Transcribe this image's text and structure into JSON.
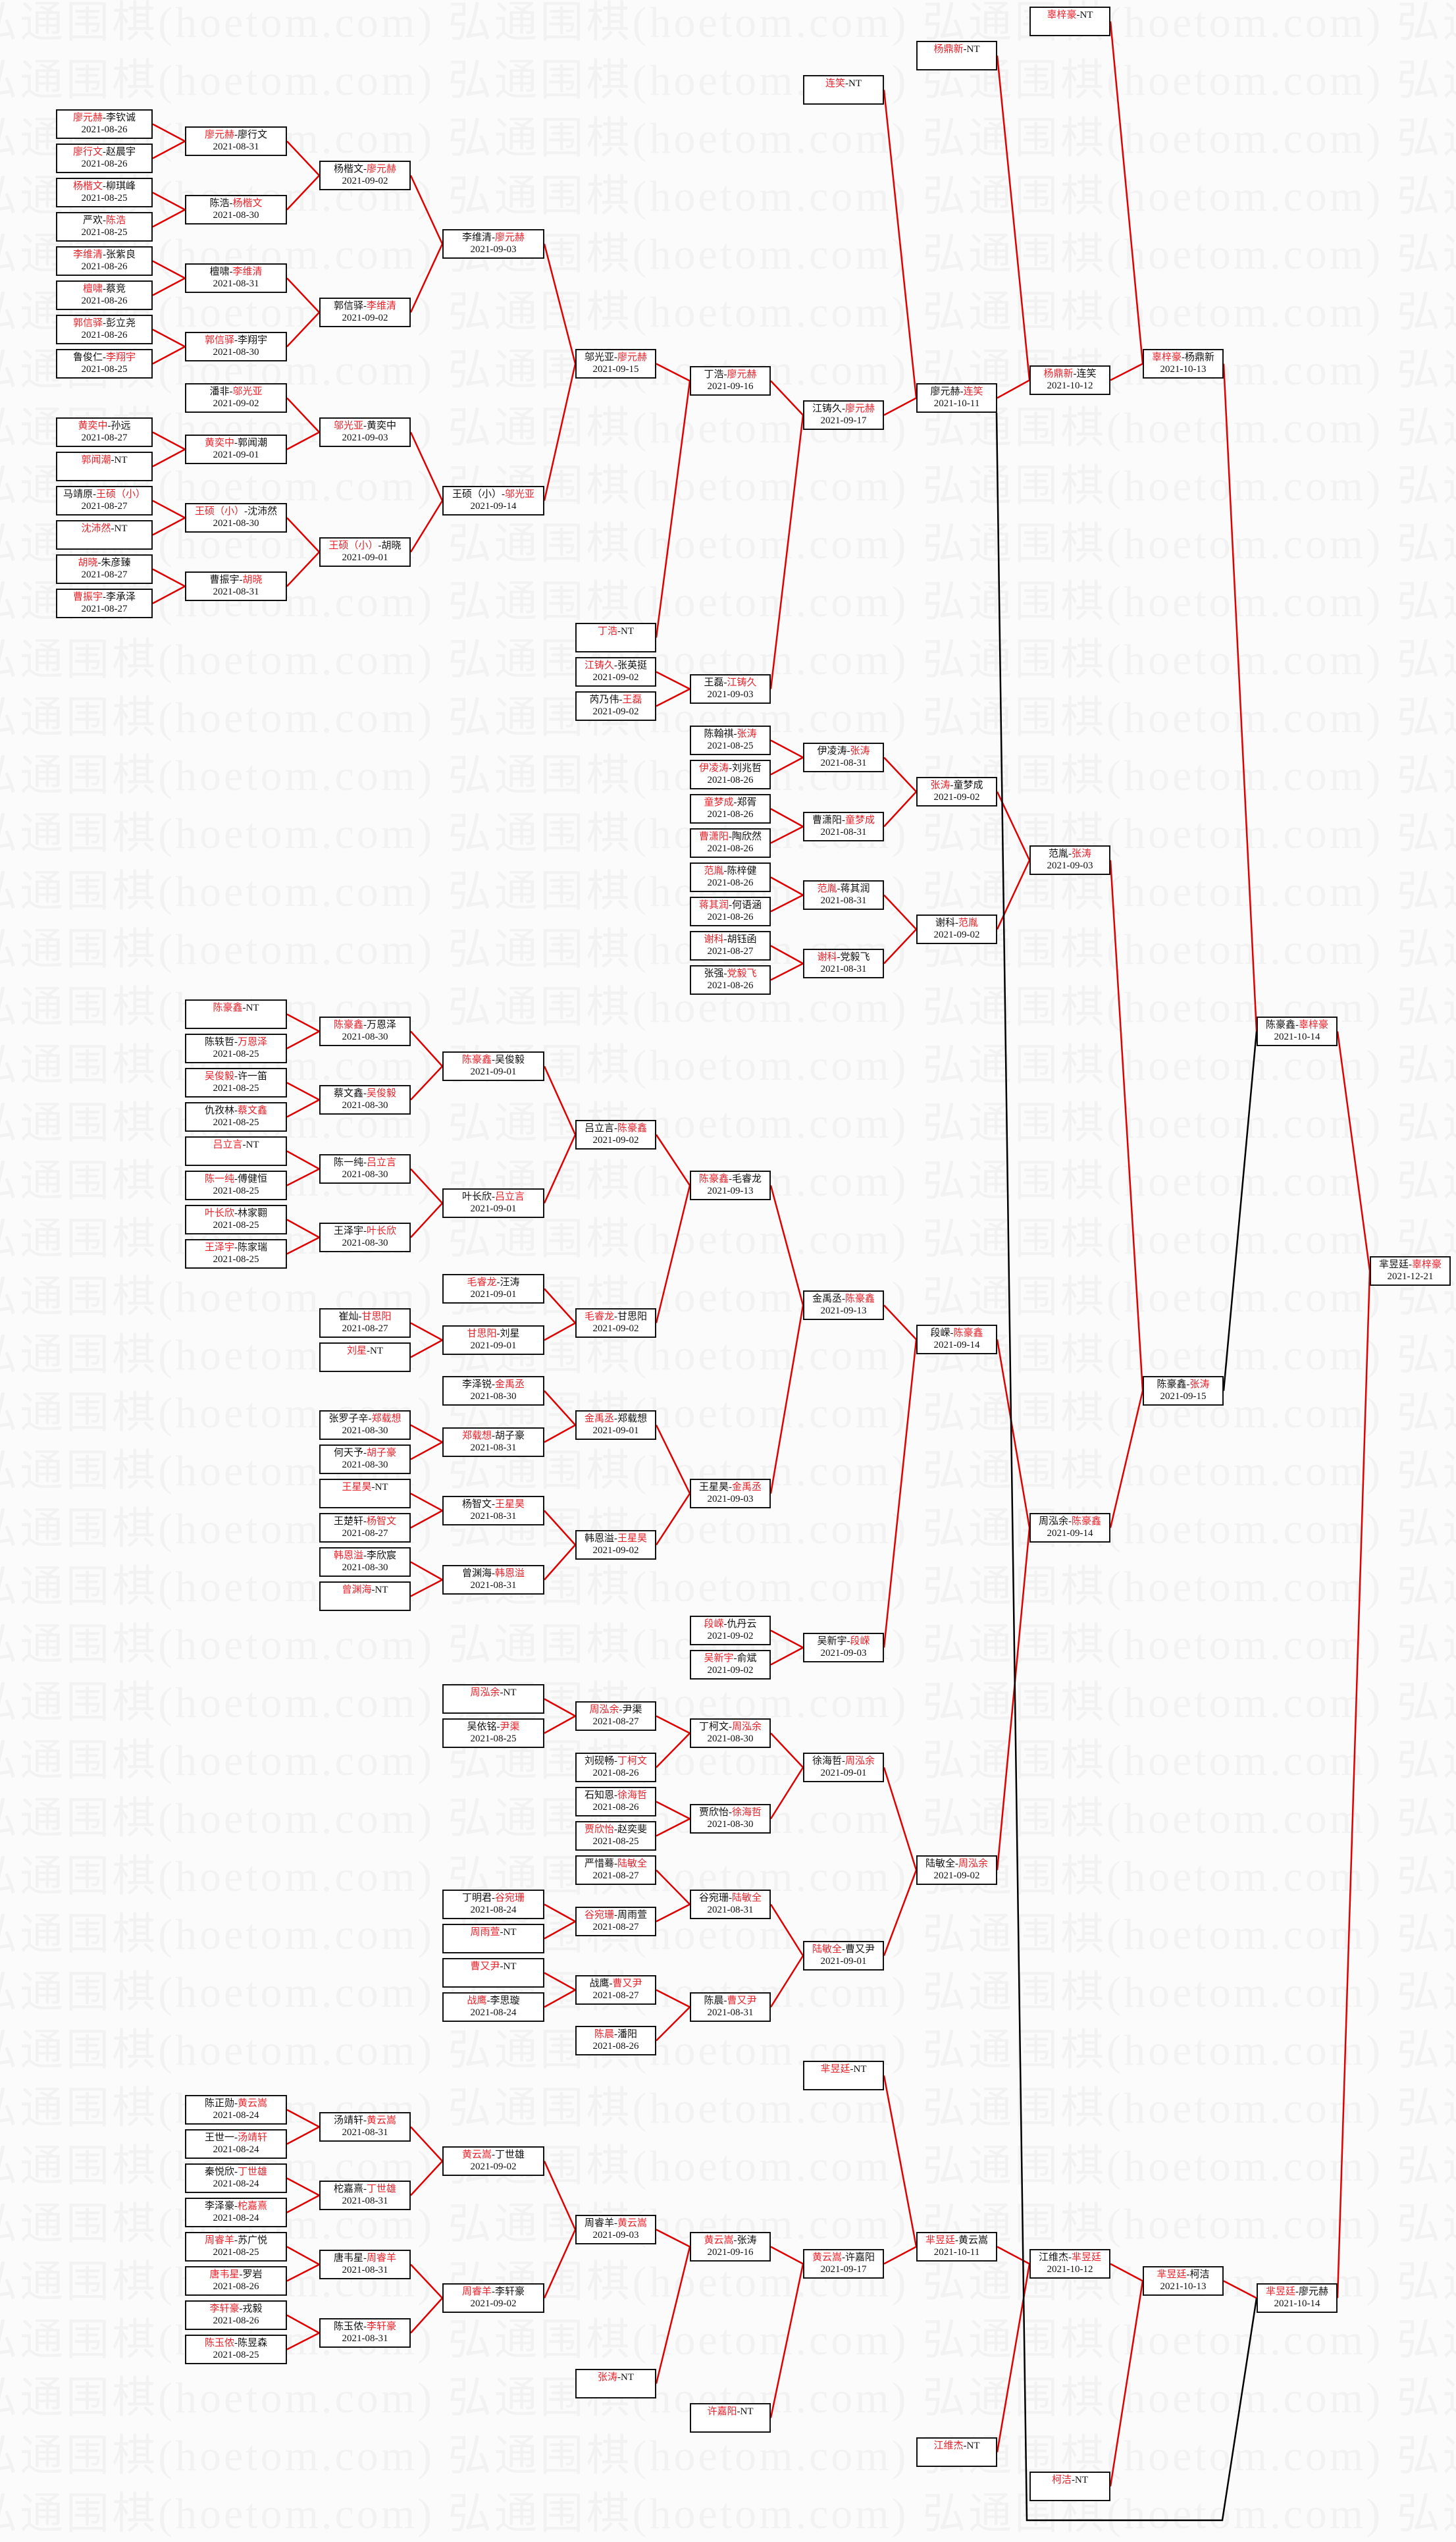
{
  "watermark": "弘通围棋(hoetom.com)",
  "colors": {
    "winner": "#e8222a",
    "winner_line": "#e00000",
    "loser_line": "#000000",
    "box_border": "#111111"
  },
  "bye_label": "NT",
  "matches": [
    {
      "a": "廖元赫",
      "b": "李钦诚",
      "date": "2021-08-26",
      "winner": "a"
    },
    {
      "a": "廖行文",
      "b": "赵晨宇",
      "date": "2021-08-26",
      "winner": "a"
    },
    {
      "a": "杨楷文",
      "b": "柳琪峰",
      "date": "2021-08-25",
      "winner": "a"
    },
    {
      "a": "严欢",
      "b": "陈浩",
      "date": "2021-08-25",
      "winner": "b"
    },
    {
      "a": "李维清",
      "b": "张紫良",
      "date": "2021-08-26",
      "winner": "a"
    },
    {
      "a": "檀啸",
      "b": "蔡竞",
      "date": "2021-08-26",
      "winner": "a"
    },
    {
      "a": "郭信驿",
      "b": "彭立尧",
      "date": "2021-08-26",
      "winner": "a"
    },
    {
      "a": "鲁俊仁",
      "b": "李翔宇",
      "date": "2021-08-25",
      "winner": "b"
    },
    {
      "a": "黄奕中",
      "b": "孙远",
      "date": "2021-08-27",
      "winner": "a"
    },
    {
      "a": "郭闻潮",
      "b": "NT",
      "date": "",
      "winner": "a"
    },
    {
      "a": "马靖原",
      "b": "王硕（小）",
      "date": "2021-08-27",
      "winner": "b"
    },
    {
      "a": "沈沛然",
      "b": "NT",
      "date": "",
      "winner": "a"
    },
    {
      "a": "胡晓",
      "b": "朱彦臻",
      "date": "2021-08-27",
      "winner": "a"
    },
    {
      "a": "曹振宇",
      "b": "李承泽",
      "date": "2021-08-27",
      "winner": "a"
    },
    {
      "a": "廖元赫",
      "b": "廖行文",
      "date": "2021-08-31",
      "winner": "a"
    },
    {
      "a": "陈浩",
      "b": "杨楷文",
      "date": "2021-08-30",
      "winner": "b"
    },
    {
      "a": "檀啸",
      "b": "李维清",
      "date": "2021-08-31",
      "winner": "b"
    },
    {
      "a": "郭信驿",
      "b": "李翔宇",
      "date": "2021-08-30",
      "winner": "a"
    },
    {
      "a": "潘非",
      "b": "邬光亚",
      "date": "2021-09-02",
      "winner": "b"
    },
    {
      "a": "黄奕中",
      "b": "郭闻潮",
      "date": "2021-09-01",
      "winner": "a"
    },
    {
      "a": "王硕（小）",
      "b": "沈沛然",
      "date": "2021-08-30",
      "winner": "a"
    },
    {
      "a": "曹振宇",
      "b": "胡晓",
      "date": "2021-08-31",
      "winner": "b"
    },
    {
      "a": "杨楷文",
      "b": "廖元赫",
      "date": "2021-09-02",
      "winner": "b"
    },
    {
      "a": "郭信驿",
      "b": "李维清",
      "date": "2021-09-02",
      "winner": "b"
    },
    {
      "a": "邬光亚",
      "b": "黄奕中",
      "date": "2021-09-03",
      "winner": "a"
    },
    {
      "a": "王硕（小）",
      "b": "胡晓",
      "date": "2021-09-01",
      "winner": "a"
    },
    {
      "a": "李维清",
      "b": "廖元赫",
      "date": "2021-09-03",
      "winner": "b"
    },
    {
      "a": "王硕（小）",
      "b": "邬光亚",
      "date": "2021-09-14",
      "winner": "b"
    },
    {
      "a": "邬光亚",
      "b": "廖元赫",
      "date": "2021-09-15",
      "winner": "b"
    },
    {
      "a": "丁浩",
      "b": "NT",
      "date": "",
      "winner": "a"
    },
    {
      "a": "江铸久",
      "b": "张英挺",
      "date": "2021-09-02",
      "winner": "a"
    },
    {
      "a": "芮乃伟",
      "b": "王磊",
      "date": "2021-09-02",
      "winner": "b"
    },
    {
      "a": "丁浩",
      "b": "廖元赫",
      "date": "2021-09-16",
      "winner": "b"
    },
    {
      "a": "王磊",
      "b": "江铸久",
      "date": "2021-09-03",
      "winner": "b"
    },
    {
      "a": "陈翰祺",
      "b": "张涛",
      "date": "2021-08-25",
      "winner": "b"
    },
    {
      "a": "伊凌涛",
      "b": "刘兆哲",
      "date": "2021-08-26",
      "winner": "a"
    },
    {
      "a": "童梦成",
      "b": "郑胥",
      "date": "2021-08-26",
      "winner": "a"
    },
    {
      "a": "曹潇阳",
      "b": "陶欣然",
      "date": "2021-08-26",
      "winner": "a"
    },
    {
      "a": "范胤",
      "b": "陈梓健",
      "date": "2021-08-26",
      "winner": "a"
    },
    {
      "a": "蒋其润",
      "b": "何语涵",
      "date": "2021-08-26",
      "winner": "a"
    },
    {
      "a": "谢科",
      "b": "胡钰函",
      "date": "2021-08-27",
      "winner": "a"
    },
    {
      "a": "张强",
      "b": "党毅飞",
      "date": "2021-08-26",
      "winner": "b"
    },
    {
      "a": "江铸久",
      "b": "廖元赫",
      "date": "2021-09-17",
      "winner": "b"
    },
    {
      "a": "连笑",
      "b": "NT",
      "date": "",
      "winner": "a"
    },
    {
      "a": "伊凌涛",
      "b": "张涛",
      "date": "2021-08-31",
      "winner": "b"
    },
    {
      "a": "曹潇阳",
      "b": "童梦成",
      "date": "2021-08-31",
      "winner": "b"
    },
    {
      "a": "范胤",
      "b": "蒋其润",
      "date": "2021-08-31",
      "winner": "a"
    },
    {
      "a": "谢科",
      "b": "党毅飞",
      "date": "2021-08-31",
      "winner": "a"
    },
    {
      "a": "廖元赫",
      "b": "连笑",
      "date": "2021-10-11",
      "winner": "b"
    },
    {
      "a": "杨鼎新",
      "b": "NT",
      "date": "",
      "winner": "a"
    },
    {
      "a": "张涛",
      "b": "童梦成",
      "date": "2021-09-02",
      "winner": "a"
    },
    {
      "a": "谢科",
      "b": "范胤",
      "date": "2021-09-02",
      "winner": "b"
    },
    {
      "a": "杨鼎新",
      "b": "连笑",
      "date": "2021-10-12",
      "winner": "a"
    },
    {
      "a": "辜梓豪",
      "b": "NT",
      "date": "",
      "winner": "a"
    },
    {
      "a": "范胤",
      "b": "张涛",
      "date": "2021-09-03",
      "winner": "b"
    },
    {
      "a": "辜梓豪",
      "b": "杨鼎新",
      "date": "2021-10-13",
      "winner": "a"
    },
    {
      "a": "陈豪鑫",
      "b": "NT",
      "date": "",
      "winner": "a"
    },
    {
      "a": "陈轶哲",
      "b": "万恩泽",
      "date": "2021-08-25",
      "winner": "b"
    },
    {
      "a": "吴俊毅",
      "b": "许一笛",
      "date": "2021-08-25",
      "winner": "a"
    },
    {
      "a": "仇孜林",
      "b": "蔡文鑫",
      "date": "2021-08-25",
      "winner": "b"
    },
    {
      "a": "吕立言",
      "b": "NT",
      "date": "",
      "winner": "a"
    },
    {
      "a": "陈一纯",
      "b": "傅健恒",
      "date": "2021-08-25",
      "winner": "a"
    },
    {
      "a": "叶长欣",
      "b": "林家翾",
      "date": "2021-08-25",
      "winner": "a"
    },
    {
      "a": "王泽宇",
      "b": "陈家瑞",
      "date": "2021-08-25",
      "winner": "a"
    },
    {
      "a": "陈豪鑫",
      "b": "万恩泽",
      "date": "2021-08-30",
      "winner": "a"
    },
    {
      "a": "蔡文鑫",
      "b": "吴俊毅",
      "date": "2021-08-30",
      "winner": "b"
    },
    {
      "a": "陈一纯",
      "b": "吕立言",
      "date": "2021-08-30",
      "winner": "b"
    },
    {
      "a": "王泽宇",
      "b": "叶长欣",
      "date": "2021-08-30",
      "winner": "b"
    },
    {
      "a": "崔灿",
      "b": "甘思阳",
      "date": "2021-08-27",
      "winner": "b"
    },
    {
      "a": "刘星",
      "b": "NT",
      "date": "",
      "winner": "a"
    },
    {
      "a": "陈豪鑫",
      "b": "吴俊毅",
      "date": "2021-09-01",
      "winner": "a"
    },
    {
      "a": "叶长欣",
      "b": "吕立言",
      "date": "2021-09-01",
      "winner": "b"
    },
    {
      "a": "毛睿龙",
      "b": "汪涛",
      "date": "2021-09-01",
      "winner": "a"
    },
    {
      "a": "甘思阳",
      "b": "刘星",
      "date": "2021-09-01",
      "winner": "a"
    },
    {
      "a": "吕立言",
      "b": "陈豪鑫",
      "date": "2021-09-02",
      "winner": "b"
    },
    {
      "a": "毛睿龙",
      "b": "甘思阳",
      "date": "2021-09-02",
      "winner": "a"
    },
    {
      "a": "陈豪鑫",
      "b": "毛睿龙",
      "date": "2021-09-13",
      "winner": "a"
    },
    {
      "a": "张罗子辛",
      "b": "郑载想",
      "date": "2021-08-30",
      "winner": "b"
    },
    {
      "a": "何天予",
      "b": "胡子豪",
      "date": "2021-08-30",
      "winner": "b"
    },
    {
      "a": "王星昊",
      "b": "NT",
      "date": "",
      "winner": "a"
    },
    {
      "a": "王楚轩",
      "b": "杨智文",
      "date": "2021-08-27",
      "winner": "b"
    },
    {
      "a": "韩恩溢",
      "b": "李欣宸",
      "date": "2021-08-30",
      "winner": "a"
    },
    {
      "a": "曾渊海",
      "b": "NT",
      "date": "",
      "winner": "a"
    },
    {
      "a": "李泽锐",
      "b": "金禹丞",
      "date": "2021-08-30",
      "winner": "b"
    },
    {
      "a": "郑载想",
      "b": "胡子豪",
      "date": "2021-08-31",
      "winner": "a"
    },
    {
      "a": "杨智文",
      "b": "王星昊",
      "date": "2021-08-31",
      "winner": "b"
    },
    {
      "a": "曾渊海",
      "b": "韩恩溢",
      "date": "2021-08-31",
      "winner": "b"
    },
    {
      "a": "金禹丞",
      "b": "郑载想",
      "date": "2021-09-01",
      "winner": "a"
    },
    {
      "a": "韩恩溢",
      "b": "王星昊",
      "date": "2021-09-02",
      "winner": "b"
    },
    {
      "a": "王星昊",
      "b": "金禹丞",
      "date": "2021-09-03",
      "winner": "b"
    },
    {
      "a": "段嵘",
      "b": "仇丹云",
      "date": "2021-09-02",
      "winner": "a"
    },
    {
      "a": "吴新宇",
      "b": "俞斌",
      "date": "2021-09-02",
      "winner": "a"
    },
    {
      "a": "金禹丞",
      "b": "陈豪鑫",
      "date": "2021-09-13",
      "winner": "b"
    },
    {
      "a": "吴新宇",
      "b": "段嵘",
      "date": "2021-09-03",
      "winner": "b"
    },
    {
      "a": "段嵘",
      "b": "陈豪鑫",
      "date": "2021-09-14",
      "winner": "b"
    },
    {
      "a": "周泓余",
      "b": "NT",
      "date": "",
      "winner": "a"
    },
    {
      "a": "吴依铭",
      "b": "尹渠",
      "date": "2021-08-25",
      "winner": "b"
    },
    {
      "a": "丁明君",
      "b": "谷宛珊",
      "date": "2021-08-24",
      "winner": "b"
    },
    {
      "a": "周雨萱",
      "b": "NT",
      "date": "",
      "winner": "a"
    },
    {
      "a": "曹又尹",
      "b": "NT",
      "date": "",
      "winner": "a"
    },
    {
      "a": "战鹰",
      "b": "李思璇",
      "date": "2021-08-24",
      "winner": "a"
    },
    {
      "a": "周泓余",
      "b": "尹渠",
      "date": "2021-08-27",
      "winner": "a"
    },
    {
      "a": "刘砚畅",
      "b": "丁柯文",
      "date": "2021-08-26",
      "winner": "b"
    },
    {
      "a": "石知恩",
      "b": "徐海哲",
      "date": "2021-08-26",
      "winner": "b"
    },
    {
      "a": "贾欣怡",
      "b": "赵奕斐",
      "date": "2021-08-25",
      "winner": "a"
    },
    {
      "a": "严惜蓦",
      "b": "陆敏全",
      "date": "2021-08-27",
      "winner": "b"
    },
    {
      "a": "谷宛珊",
      "b": "周雨萱",
      "date": "2021-08-27",
      "winner": "a"
    },
    {
      "a": "战鹰",
      "b": "曹又尹",
      "date": "2021-08-27",
      "winner": "b"
    },
    {
      "a": "陈晨",
      "b": "潘阳",
      "date": "2021-08-26",
      "winner": "a"
    },
    {
      "a": "丁柯文",
      "b": "周泓余",
      "date": "2021-08-30",
      "winner": "b"
    },
    {
      "a": "贾欣怡",
      "b": "徐海哲",
      "date": "2021-08-30",
      "winner": "b"
    },
    {
      "a": "谷宛珊",
      "b": "陆敏全",
      "date": "2021-08-31",
      "winner": "b"
    },
    {
      "a": "陈晨",
      "b": "曹又尹",
      "date": "2021-08-31",
      "winner": "b"
    },
    {
      "a": "徐海哲",
      "b": "周泓余",
      "date": "2021-09-01",
      "winner": "b"
    },
    {
      "a": "陆敏全",
      "b": "曹又尹",
      "date": "2021-09-01",
      "winner": "a"
    },
    {
      "a": "陆敏全",
      "b": "周泓余",
      "date": "2021-09-02",
      "winner": "b"
    },
    {
      "a": "周泓余",
      "b": "陈豪鑫",
      "date": "2021-09-14",
      "winner": "b"
    },
    {
      "a": "陈豪鑫",
      "b": "张涛",
      "date": "2021-09-15",
      "winner": "b"
    },
    {
      "a": "陈豪鑫",
      "b": "辜梓豪",
      "date": "2021-10-14",
      "winner": "b"
    },
    {
      "a": "陈正勋",
      "b": "黄云嵩",
      "date": "2021-08-24",
      "winner": "b"
    },
    {
      "a": "王世一",
      "b": "汤靖轩",
      "date": "2021-08-24",
      "winner": "b"
    },
    {
      "a": "秦悦欣",
      "b": "丁世雄",
      "date": "2021-08-24",
      "winner": "b"
    },
    {
      "a": "李泽豪",
      "b": "柁嘉熹",
      "date": "2021-08-24",
      "winner": "b"
    },
    {
      "a": "周睿羊",
      "b": "苏广悦",
      "date": "2021-08-25",
      "winner": "a"
    },
    {
      "a": "唐韦星",
      "b": "罗岩",
      "date": "2021-08-26",
      "winner": "a"
    },
    {
      "a": "李轩豪",
      "b": "戎毅",
      "date": "2021-08-26",
      "winner": "a"
    },
    {
      "a": "陈玉侬",
      "b": "陈昱森",
      "date": "2021-08-25",
      "winner": "a"
    },
    {
      "a": "汤靖轩",
      "b": "黄云嵩",
      "date": "2021-08-31",
      "winner": "b"
    },
    {
      "a": "柁嘉熹",
      "b": "丁世雄",
      "date": "2021-08-31",
      "winner": "b"
    },
    {
      "a": "唐韦星",
      "b": "周睿羊",
      "date": "2021-08-31",
      "winner": "b"
    },
    {
      "a": "陈玉侬",
      "b": "李轩豪",
      "date": "2021-08-31",
      "winner": "b"
    },
    {
      "a": "黄云嵩",
      "b": "丁世雄",
      "date": "2021-09-02",
      "winner": "a"
    },
    {
      "a": "周睿羊",
      "b": "李轩豪",
      "date": "2021-09-02",
      "winner": "a"
    },
    {
      "a": "周睿羊",
      "b": "黄云嵩",
      "date": "2021-09-03",
      "winner": "b"
    },
    {
      "a": "张涛",
      "b": "NT",
      "date": "",
      "winner": "a"
    },
    {
      "a": "黄云嵩",
      "b": "张涛",
      "date": "2021-09-16",
      "winner": "a"
    },
    {
      "a": "许嘉阳",
      "b": "NT",
      "date": "",
      "winner": "a"
    },
    {
      "a": "黄云嵩",
      "b": "许嘉阳",
      "date": "2021-09-17",
      "winner": "a"
    },
    {
      "a": "芈昱廷",
      "b": "NT",
      "date": "",
      "winner": "a"
    },
    {
      "a": "芈昱廷",
      "b": "黄云嵩",
      "date": "2021-10-11",
      "winner": "a"
    },
    {
      "a": "江维杰",
      "b": "NT",
      "date": "",
      "winner": "a"
    },
    {
      "a": "江维杰",
      "b": "芈昱廷",
      "date": "2021-10-12",
      "winner": "b"
    },
    {
      "a": "柯洁",
      "b": "NT",
      "date": "",
      "winner": "a"
    },
    {
      "a": "芈昱廷",
      "b": "柯洁",
      "date": "2021-10-13",
      "winner": "a"
    },
    {
      "a": "芈昱廷",
      "b": "廖元赫",
      "date": "2021-10-14",
      "winner": "a"
    },
    {
      "a": "芈昱廷",
      "b": "辜梓豪",
      "date": "2021-12-21",
      "winner": "b"
    }
  ]
}
